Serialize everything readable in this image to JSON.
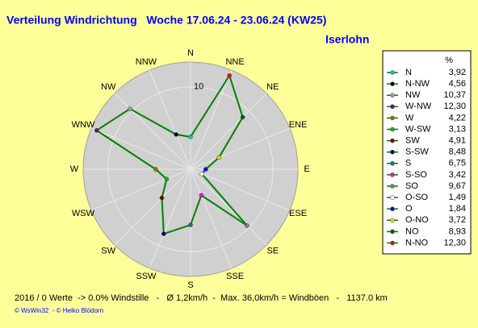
{
  "chart_data": {
    "type": "radar",
    "title": "Verteilung Windrichtung   Woche 17.06.24 - 23.06.24 (KW25)",
    "subtitle": "Iserlohn",
    "directions": [
      "N",
      "NNE",
      "NE",
      "ENE",
      "E",
      "ESE",
      "SE",
      "SSE",
      "S",
      "SSW",
      "SW",
      "WSW",
      "W",
      "WNW",
      "NW",
      "NNW"
    ],
    "rlim": [
      0,
      13
    ],
    "rticks": [
      10
    ],
    "line_color": "#008000",
    "legend": {
      "title": "%",
      "entries": [
        {
          "name": "N",
          "color": "#00c8c8",
          "value": 3.92,
          "value_label": "3,92"
        },
        {
          "name": "N-NW",
          "color": "#000000",
          "value": 4.56,
          "value_label": "4,56"
        },
        {
          "name": "NW",
          "color": "#a0a0a0",
          "value": 10.37,
          "value_label": "10,37"
        },
        {
          "name": "W-NW",
          "color": "#800080",
          "value": 12.3,
          "value_label": "12,30"
        },
        {
          "name": "W",
          "color": "#808000",
          "value": 4.22,
          "value_label": "4,22"
        },
        {
          "name": "W-SW",
          "color": "#00c000",
          "value": 3.13,
          "value_label": "3,13"
        },
        {
          "name": "SW",
          "color": "#800000",
          "value": 4.91,
          "value_label": "4,91"
        },
        {
          "name": "S-SW",
          "color": "#000080",
          "value": 8.48,
          "value_label": "8,48"
        },
        {
          "name": "S",
          "color": "#008080",
          "value": 6.75,
          "value_label": "6,75"
        },
        {
          "name": "S-SO",
          "color": "#ff00ff",
          "value": 3.42,
          "value_label": "3,42"
        },
        {
          "name": "SO",
          "color": "#808080",
          "value": 9.67,
          "value_label": "9,67"
        },
        {
          "name": "O-SO",
          "color": "#ffffff",
          "value": 1.49,
          "value_label": "1,49"
        },
        {
          "name": "O",
          "color": "#0000ff",
          "value": 1.84,
          "value_label": "1,84"
        },
        {
          "name": "O-NO",
          "color": "#e0e000",
          "value": 3.72,
          "value_label": "3,72"
        },
        {
          "name": "NO",
          "color": "#006000",
          "value": 8.93,
          "value_label": "8,93"
        },
        {
          "name": "N-NO",
          "color": "#ff0000",
          "value": 12.3,
          "value_label": "12,30"
        }
      ]
    },
    "footer": "2016 / 0 Werte  -> 0.0% Windstille   -   Ø 1,2km/h  -  Max. 36,0km/h = Windböen   -   1137.0 km",
    "credit": "© WsWin32  - © Heiko Blödorn"
  }
}
